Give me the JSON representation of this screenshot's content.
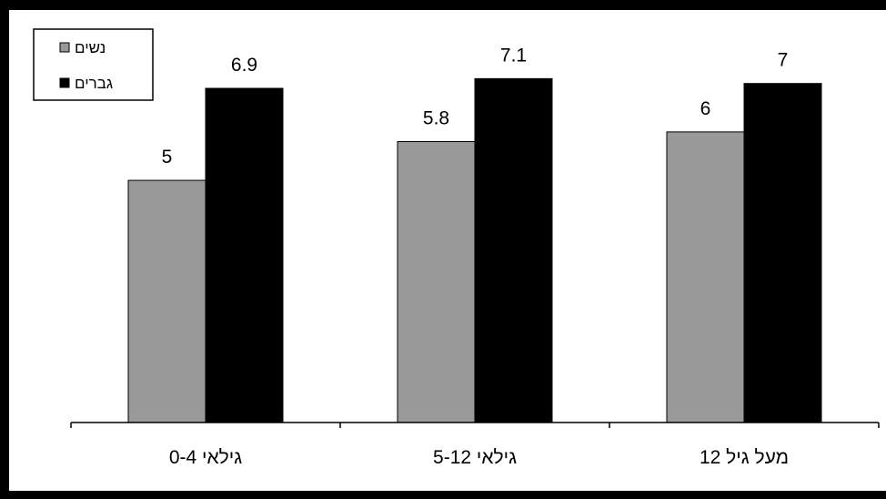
{
  "chart_data": {
    "type": "bar",
    "categories": [
      "גילאי 0-4",
      "גילאי 5-12",
      "מעל גיל 12"
    ],
    "series": [
      {
        "name": "נשים",
        "values": [
          5,
          5.8,
          6
        ],
        "value_labels": [
          "5",
          "5.8",
          "6"
        ],
        "color": "#999999"
      },
      {
        "name": "גברים",
        "values": [
          6.9,
          7.1,
          7
        ],
        "value_labels": [
          "6.9",
          "7.1",
          "7"
        ],
        "color": "#000000"
      }
    ],
    "ylim": [
      0,
      8
    ],
    "grid": false,
    "legend_position": "top-left"
  }
}
